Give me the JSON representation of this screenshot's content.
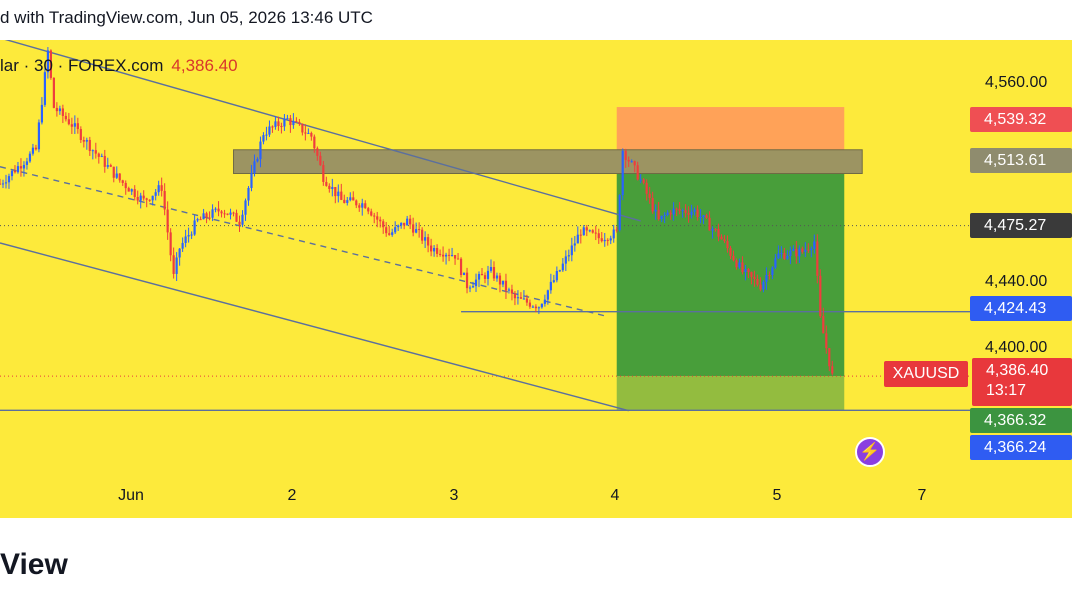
{
  "header": {
    "published_text": "d with TradingView.com, Jun 05, 2026 13:46 UTC"
  },
  "symbol": {
    "text": "lar · 30 · FOREX.com",
    "last_price": "4,386.40"
  },
  "price_axis": {
    "ticks": [
      "4,560.00",
      "4,440.00",
      "4,400.00"
    ],
    "labels": {
      "tp_level": "4,539.32",
      "zone_level": "4,513.61",
      "mid_level": "4,475.27",
      "entry_level": "4,424.43",
      "sl_level_1": "4,366.32",
      "sl_level_2": "4,366.24"
    },
    "current": {
      "price": "4,386.40",
      "countdown": "13:17"
    }
  },
  "ticker_tag": "XAUUSD",
  "date_axis": [
    "Jun",
    "2",
    "3",
    "4",
    "5",
    "7"
  ],
  "footer": {
    "brand": "View"
  },
  "colors": {
    "background": "#fdea3b",
    "up_candle": "#2962ff",
    "down_candle": "#ef3d3d",
    "profit_zone": "#3e9a3a",
    "loss_zone": "#ff9e5a",
    "resistance_zone": "#9c9462",
    "trendline": "#5b6f9e"
  },
  "chart_data": {
    "type": "candlestick",
    "symbol": "XAUUSD",
    "timeframe": "30",
    "exchange": "FOREX.com",
    "ylim": [
      4350,
      4585
    ],
    "x_range": [
      "2026-05-31T18:00",
      "2026-06-07T12:00"
    ],
    "x_ticks": [
      "Jun",
      "2",
      "3",
      "4",
      "5",
      "7"
    ],
    "price_path": [
      [
        "2026-05-31T18:00",
        4500
      ],
      [
        "2026-06-01T00:00",
        4520
      ],
      [
        "2026-06-01T02:00",
        4578
      ],
      [
        "2026-06-01T03:00",
        4545
      ],
      [
        "2026-06-01T06:00",
        4535
      ],
      [
        "2026-06-01T10:00",
        4518
      ],
      [
        "2026-06-01T14:00",
        4502
      ],
      [
        "2026-06-01T18:00",
        4490
      ],
      [
        "2026-06-01T21:00",
        4498
      ],
      [
        "2026-06-01T23:00",
        4445
      ],
      [
        "2026-06-02T00:00",
        4462
      ],
      [
        "2026-06-02T03:00",
        4478
      ],
      [
        "2026-06-02T07:00",
        4485
      ],
      [
        "2026-06-02T10:00",
        4478
      ],
      [
        "2026-06-02T14:00",
        4530
      ],
      [
        "2026-06-02T18:00",
        4538
      ],
      [
        "2026-06-02T22:00",
        4528
      ],
      [
        "2026-06-03T00:00",
        4504
      ],
      [
        "2026-06-03T03:00",
        4490
      ],
      [
        "2026-06-03T07:00",
        4488
      ],
      [
        "2026-06-03T11:00",
        4470
      ],
      [
        "2026-06-03T14:00",
        4478
      ],
      [
        "2026-06-03T18:00",
        4462
      ],
      [
        "2026-06-03T22:00",
        4458
      ],
      [
        "2026-06-04T00:00",
        4440
      ],
      [
        "2026-06-04T04:00",
        4448
      ],
      [
        "2026-06-04T08:00",
        4432
      ],
      [
        "2026-06-04T12:00",
        4428
      ],
      [
        "2026-06-04T16:00",
        4452
      ],
      [
        "2026-06-04T19:00",
        4472
      ],
      [
        "2026-06-04T22:00",
        4468
      ],
      [
        "2026-06-05T01:00",
        4471
      ],
      [
        "2026-06-05T02:00",
        4520
      ],
      [
        "2026-06-05T05:00",
        4502
      ],
      [
        "2026-06-05T08:00",
        4478
      ],
      [
        "2026-06-05T10:00",
        4484
      ],
      [
        "2026-06-05T14:00",
        4484
      ],
      [
        "2026-06-05T18:00",
        4470
      ],
      [
        "2026-06-05T22:00",
        4448
      ],
      [
        "2026-06-06T01:00",
        4440
      ],
      [
        "2026-06-06T04:00",
        4458
      ],
      [
        "2026-06-06T08:00",
        4460
      ],
      [
        "2026-06-06T10:00",
        4466
      ],
      [
        "2026-06-06T11:00",
        4420
      ],
      [
        "2026-06-06T13:00",
        4386.4
      ]
    ],
    "position": {
      "type": "short",
      "entry": 4513.61,
      "stop": 4539.32,
      "target": 4386.4,
      "start": "2026-06-05T01:00",
      "end": "2026-06-06T15:00"
    },
    "resistance_zone": {
      "top": 4520,
      "bottom": 4506,
      "start": "2026-06-02T09:00",
      "end": "2026-06-06T18:00"
    },
    "horizontal_lines": [
      {
        "price": 4424.43,
        "start": "2026-06-03T23:00"
      },
      {
        "price": 4366.24,
        "start": "2026-05-31T18:00"
      }
    ],
    "trend_channel": [
      {
        "from": [
          "2026-05-31T18:00",
          4586
        ],
        "to": [
          "2026-06-05T05:00",
          4478
        ]
      },
      {
        "from": [
          "2026-05-31T18:00",
          4510
        ],
        "to": [
          "2026-06-04T23:00",
          4422
        ],
        "style": "dashed"
      },
      {
        "from": [
          "2026-05-31T18:00",
          4465
        ],
        "to": [
          "2026-06-05T03:00",
          4366
        ]
      }
    ],
    "last_price": 4386.4
  }
}
